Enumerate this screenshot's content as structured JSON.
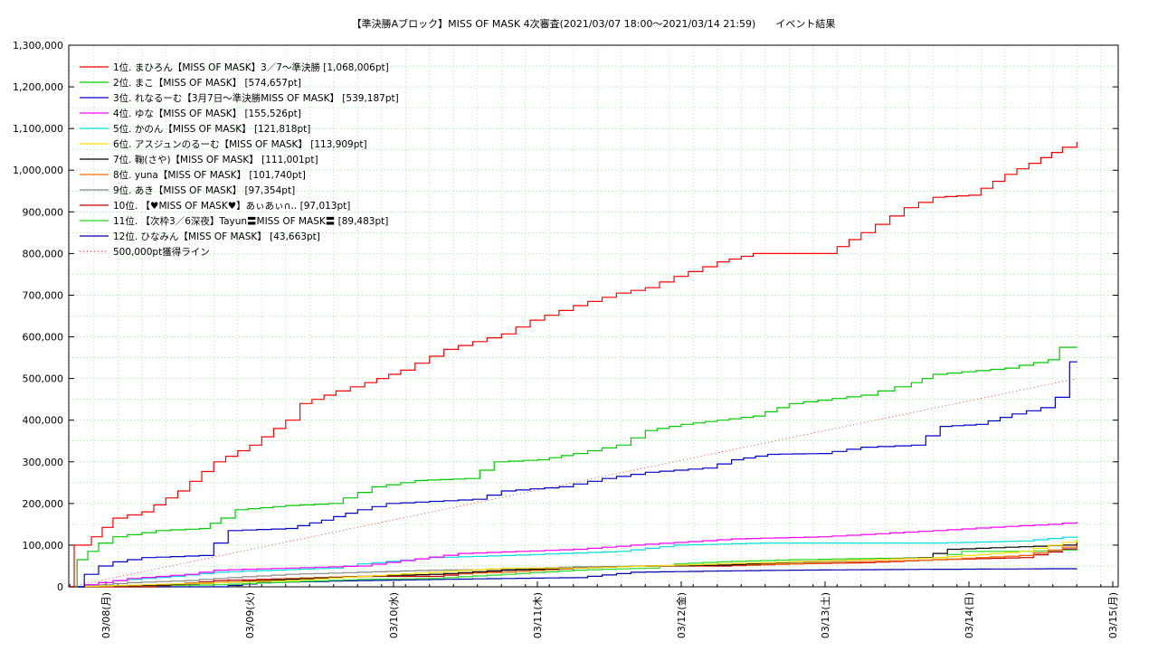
{
  "chart_data": {
    "type": "line",
    "title": "【準決勝Aブロック】MISS OF MASK 4次審査(2021/03/07 18:00〜2021/03/14 21:59)　　イベント結果",
    "xlabel": "",
    "ylabel": "",
    "ylim": [
      0,
      1300000
    ],
    "xlim": [
      "2021-03-07 18:00",
      "2021-03-15 01:00"
    ],
    "grid": true,
    "legend_position": "top-left",
    "y_ticks": [
      "0",
      "100,000",
      "200,000",
      "300,000",
      "400,000",
      "500,000",
      "600,000",
      "700,000",
      "800,000",
      "900,000",
      "1,000,000",
      "1,100,000",
      "1,200,000",
      "1,300,000"
    ],
    "x_ticks": [
      "03/08(月)",
      "03/09(火)",
      "03/10(水)",
      "03/11(木)",
      "03/12(金)",
      "03/13(土)",
      "03/14(日)",
      "03/15(月)"
    ],
    "series": [
      {
        "name": "1位. まひろん【MISS OF MASK】3／7〜準決勝 [1,068,006pt]",
        "color": "#ff0000",
        "dash": false,
        "points": [
          [
            0,
            0
          ],
          [
            0.03,
            100000
          ],
          [
            0.15,
            120000
          ],
          [
            0.3,
            165000
          ],
          [
            0.5,
            180000
          ],
          [
            0.75,
            230000
          ],
          [
            1.0,
            300000
          ],
          [
            1.25,
            340000
          ],
          [
            1.5,
            400000
          ],
          [
            1.6,
            440000
          ],
          [
            1.85,
            470000
          ],
          [
            2.05,
            490000
          ],
          [
            2.3,
            520000
          ],
          [
            2.6,
            570000
          ],
          [
            3.0,
            607000
          ],
          [
            3.2,
            640000
          ],
          [
            3.5,
            675000
          ],
          [
            3.8,
            705000
          ],
          [
            4.0,
            718000
          ],
          [
            4.2,
            745000
          ],
          [
            4.5,
            780000
          ],
          [
            4.75,
            800000
          ],
          [
            5.25,
            800000
          ],
          [
            5.5,
            850000
          ],
          [
            5.8,
            910000
          ],
          [
            6.0,
            935000
          ],
          [
            6.25,
            940000
          ],
          [
            6.5,
            990000
          ],
          [
            6.75,
            1030000
          ],
          [
            6.9,
            1055000
          ],
          [
            7.0,
            1068006
          ]
        ]
      },
      {
        "name": "2位. まこ【MISS OF MASK】 [574,657pt]",
        "color": "#00cc00",
        "dash": false,
        "points": [
          [
            0,
            0
          ],
          [
            0.05,
            65000
          ],
          [
            0.2,
            105000
          ],
          [
            0.3,
            120000
          ],
          [
            0.6,
            135000
          ],
          [
            0.9,
            140000
          ],
          [
            1.05,
            165000
          ],
          [
            1.15,
            185000
          ],
          [
            1.5,
            195000
          ],
          [
            1.8,
            200000
          ],
          [
            2.1,
            240000
          ],
          [
            2.4,
            255000
          ],
          [
            2.75,
            260000
          ],
          [
            2.95,
            300000
          ],
          [
            3.25,
            305000
          ],
          [
            3.5,
            320000
          ],
          [
            3.8,
            340000
          ],
          [
            4.0,
            375000
          ],
          [
            4.25,
            390000
          ],
          [
            4.5,
            400000
          ],
          [
            4.75,
            410000
          ],
          [
            5.0,
            440000
          ],
          [
            5.5,
            460000
          ],
          [
            5.85,
            490000
          ],
          [
            6.0,
            510000
          ],
          [
            6.5,
            525000
          ],
          [
            6.8,
            545000
          ],
          [
            6.88,
            575000
          ],
          [
            7.0,
            574657
          ]
        ]
      },
      {
        "name": "3位. れなるーむ【3月7日〜準決勝MISS OF MASK】 [539,187pt]",
        "color": "#0000cc",
        "dash": false,
        "points": [
          [
            0,
            0
          ],
          [
            0.1,
            30000
          ],
          [
            0.2,
            50000
          ],
          [
            0.3,
            60000
          ],
          [
            0.5,
            70000
          ],
          [
            0.9,
            75000
          ],
          [
            1.0,
            105000
          ],
          [
            1.1,
            135000
          ],
          [
            1.5,
            140000
          ],
          [
            1.75,
            160000
          ],
          [
            2.0,
            185000
          ],
          [
            2.2,
            200000
          ],
          [
            2.5,
            205000
          ],
          [
            2.8,
            210000
          ],
          [
            3.0,
            230000
          ],
          [
            3.4,
            240000
          ],
          [
            3.7,
            260000
          ],
          [
            4.0,
            275000
          ],
          [
            4.4,
            285000
          ],
          [
            4.6,
            305000
          ],
          [
            4.85,
            318000
          ],
          [
            5.2,
            320000
          ],
          [
            5.5,
            335000
          ],
          [
            5.85,
            340000
          ],
          [
            6.05,
            385000
          ],
          [
            6.3,
            390000
          ],
          [
            6.55,
            415000
          ],
          [
            6.75,
            430000
          ],
          [
            6.85,
            455000
          ],
          [
            6.92,
            455000
          ],
          [
            6.95,
            540000
          ],
          [
            7.0,
            539187
          ]
        ]
      },
      {
        "name": "4位. ゆな【MISS OF MASK】 [155,526pt]",
        "color": "#ff00ff",
        "dash": false,
        "points": [
          [
            0,
            0
          ],
          [
            0.4,
            20000
          ],
          [
            0.8,
            30000
          ],
          [
            1.0,
            40000
          ],
          [
            2.0,
            50000
          ],
          [
            2.7,
            80000
          ],
          [
            3.5,
            90000
          ],
          [
            3.9,
            100000
          ],
          [
            4.6,
            115000
          ],
          [
            5.2,
            120000
          ],
          [
            6.0,
            135000
          ],
          [
            6.5,
            145000
          ],
          [
            6.8,
            150000
          ],
          [
            7.0,
            155526
          ]
        ]
      },
      {
        "name": "5位. かのん【MISS OF MASK】 [121,818pt]",
        "color": "#00dddd",
        "dash": false,
        "points": [
          [
            0,
            0
          ],
          [
            0.3,
            15000
          ],
          [
            0.7,
            25000
          ],
          [
            1.0,
            35000
          ],
          [
            1.8,
            45000
          ],
          [
            2.0,
            55000
          ],
          [
            2.5,
            70000
          ],
          [
            3.0,
            75000
          ],
          [
            3.8,
            85000
          ],
          [
            4.2,
            100000
          ],
          [
            4.8,
            105000
          ],
          [
            6.0,
            105000
          ],
          [
            6.6,
            110000
          ],
          [
            7.0,
            121818
          ]
        ]
      },
      {
        "name": "6位. アスジュンのるーむ【MISS OF MASK】 [113,909pt]",
        "color": "#ffdd00",
        "dash": false,
        "points": [
          [
            0,
            0
          ],
          [
            0.5,
            5000
          ],
          [
            1.0,
            10000
          ],
          [
            1.5,
            15000
          ],
          [
            2.0,
            25000
          ],
          [
            2.5,
            35000
          ],
          [
            3.0,
            45000
          ],
          [
            3.5,
            45000
          ],
          [
            4.0,
            50000
          ],
          [
            4.5,
            55000
          ],
          [
            5.0,
            60000
          ],
          [
            5.5,
            65000
          ],
          [
            6.0,
            70000
          ],
          [
            6.6,
            85000
          ],
          [
            7.0,
            113909
          ]
        ]
      },
      {
        "name": "7位. 鞠(さや)【MISS OF MASK】 [111,001pt]",
        "color": "#000000",
        "dash": false,
        "points": [
          [
            0,
            0
          ],
          [
            0.5,
            3000
          ],
          [
            1.0,
            10000
          ],
          [
            1.5,
            18000
          ],
          [
            2.0,
            25000
          ],
          [
            2.5,
            30000
          ],
          [
            3.0,
            40000
          ],
          [
            3.5,
            45000
          ],
          [
            4.0,
            50000
          ],
          [
            4.5,
            52000
          ],
          [
            5.0,
            60000
          ],
          [
            5.5,
            65000
          ],
          [
            5.9,
            70000
          ],
          [
            6.1,
            90000
          ],
          [
            6.5,
            95000
          ],
          [
            6.9,
            100000
          ],
          [
            7.0,
            111001
          ]
        ]
      },
      {
        "name": "8位. yuna【MISS OF MASK】 [101,740pt]",
        "color": "#ff6600",
        "dash": false,
        "points": [
          [
            0,
            0
          ],
          [
            0.5,
            2000
          ],
          [
            1.0,
            10000
          ],
          [
            1.5,
            20000
          ],
          [
            2.0,
            25000
          ],
          [
            2.5,
            30000
          ],
          [
            3.0,
            35000
          ],
          [
            3.5,
            45000
          ],
          [
            4.0,
            50000
          ],
          [
            4.5,
            52000
          ],
          [
            5.0,
            55000
          ],
          [
            5.5,
            60000
          ],
          [
            6.0,
            65000
          ],
          [
            6.6,
            75000
          ],
          [
            7.0,
            101740
          ]
        ]
      },
      {
        "name": "9位. あき【MISS OF MASK】 [97,354pt]",
        "color": "#888888",
        "dash": false,
        "points": [
          [
            0,
            0
          ],
          [
            0.4,
            10000
          ],
          [
            0.8,
            15000
          ],
          [
            1.0,
            20000
          ],
          [
            1.5,
            30000
          ],
          [
            2.0,
            35000
          ],
          [
            2.5,
            40000
          ],
          [
            3.0,
            42000
          ],
          [
            3.5,
            48000
          ],
          [
            4.0,
            50000
          ],
          [
            4.5,
            55000
          ],
          [
            5.0,
            58000
          ],
          [
            5.5,
            60000
          ],
          [
            6.0,
            65000
          ],
          [
            6.6,
            75000
          ],
          [
            7.0,
            97354
          ]
        ]
      },
      {
        "name": "10位. 【♥MISS OF MASK♥】あぃあぃ∩‥ [97,013pt]",
        "color": "#cc0000",
        "dash": false,
        "points": [
          [
            0,
            0
          ],
          [
            0.5,
            0
          ],
          [
            1.0,
            15000
          ],
          [
            1.5,
            20000
          ],
          [
            2.0,
            25000
          ],
          [
            2.5,
            25000
          ],
          [
            3.0,
            40000
          ],
          [
            3.5,
            45000
          ],
          [
            4.0,
            50000
          ],
          [
            4.5,
            50000
          ],
          [
            5.0,
            55000
          ],
          [
            5.5,
            58000
          ],
          [
            6.0,
            65000
          ],
          [
            6.6,
            70000
          ],
          [
            7.0,
            97013
          ]
        ]
      },
      {
        "name": "11位. 【次枠3／6深夜】Tayun〓MISS OF MASK〓 [89,483pt]",
        "color": "#22dd22",
        "dash": false,
        "points": [
          [
            0,
            0
          ],
          [
            0.5,
            2000
          ],
          [
            1.0,
            5000
          ],
          [
            1.5,
            12000
          ],
          [
            2.0,
            18000
          ],
          [
            2.5,
            20000
          ],
          [
            3.0,
            30000
          ],
          [
            3.5,
            40000
          ],
          [
            4.0,
            45000
          ],
          [
            4.2,
            55000
          ],
          [
            4.5,
            60000
          ],
          [
            5.0,
            65000
          ],
          [
            5.5,
            68000
          ],
          [
            6.0,
            70000
          ],
          [
            6.2,
            85000
          ],
          [
            6.6,
            85000
          ],
          [
            7.0,
            89483
          ]
        ]
      },
      {
        "name": "12位. ひなみん【MISS OF MASK】 [43,663pt]",
        "color": "#0000aa",
        "dash": false,
        "points": [
          [
            0,
            0
          ],
          [
            1.0,
            0
          ],
          [
            1.3,
            10000
          ],
          [
            2.0,
            15000
          ],
          [
            3.0,
            20000
          ],
          [
            3.5,
            22000
          ],
          [
            3.9,
            35000
          ],
          [
            4.5,
            38000
          ],
          [
            5.0,
            40000
          ],
          [
            6.0,
            42000
          ],
          [
            7.0,
            43663
          ]
        ]
      },
      {
        "name": "500,000pt獲得ライン",
        "color": "#ff3333",
        "dash": true,
        "points": [
          [
            0,
            0
          ],
          [
            7.0,
            500000
          ]
        ]
      }
    ]
  }
}
